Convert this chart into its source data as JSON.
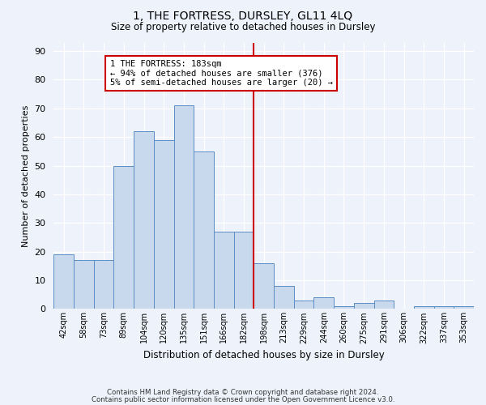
{
  "title": "1, THE FORTRESS, DURSLEY, GL11 4LQ",
  "subtitle": "Size of property relative to detached houses in Dursley",
  "xlabel": "Distribution of detached houses by size in Dursley",
  "ylabel": "Number of detached properties",
  "categories": [
    "42sqm",
    "58sqm",
    "73sqm",
    "89sqm",
    "104sqm",
    "120sqm",
    "135sqm",
    "151sqm",
    "166sqm",
    "182sqm",
    "198sqm",
    "213sqm",
    "229sqm",
    "244sqm",
    "260sqm",
    "275sqm",
    "291sqm",
    "306sqm",
    "322sqm",
    "337sqm",
    "353sqm"
  ],
  "values": [
    19,
    17,
    17,
    50,
    62,
    59,
    71,
    55,
    27,
    27,
    16,
    8,
    3,
    4,
    1,
    2,
    3,
    0,
    1,
    1,
    1
  ],
  "bar_color": "#c8d9ee",
  "bar_edge_color": "#5b8ec4",
  "vline_index": 9.5,
  "annotation_text": "1 THE FORTRESS: 183sqm\n← 94% of detached houses are smaller (376)\n5% of semi-detached houses are larger (20) →",
  "annotation_box_color": "#ffffff",
  "annotation_box_edge": "#cc0000",
  "vline_color": "#cc0000",
  "background_color": "#eef2fa",
  "plot_bg_color": "#eef2fa",
  "footer1": "Contains HM Land Registry data © Crown copyright and database right 2024.",
  "footer2": "Contains public sector information licensed under the Open Government Licence v3.0.",
  "ylim": [
    0,
    93
  ],
  "yticks": [
    0,
    10,
    20,
    30,
    40,
    50,
    60,
    70,
    80,
    90
  ]
}
